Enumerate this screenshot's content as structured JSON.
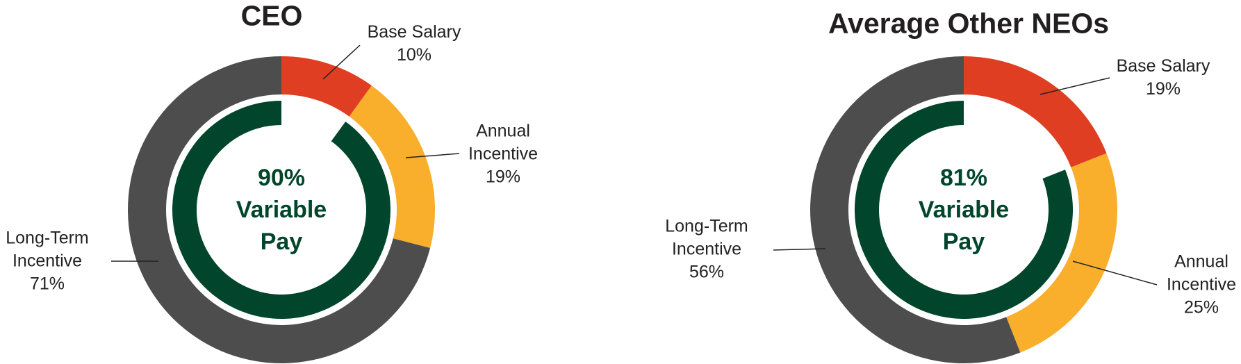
{
  "chart_data": [
    {
      "type": "pie",
      "title": "CEO",
      "categories": [
        "Base Salary",
        "Annual Incentive",
        "Long-Term Incentive"
      ],
      "values": [
        10,
        19,
        71
      ],
      "value_labels": [
        "10%",
        "19%",
        "71%"
      ],
      "colors": [
        "#e03e22",
        "#f9ae2c",
        "#4d4d4d"
      ],
      "inner_ring": {
        "value": 90,
        "value_label": "90%",
        "label": "Variable Pay",
        "color": "#00452c"
      }
    },
    {
      "type": "pie",
      "title": "Average Other NEOs",
      "categories": [
        "Base Salary",
        "Annual Incentive",
        "Long-Term Incentive"
      ],
      "values": [
        19,
        25,
        56
      ],
      "value_labels": [
        "19%",
        "25%",
        "56%"
      ],
      "colors": [
        "#e03e22",
        "#f9ae2c",
        "#4d4d4d"
      ],
      "inner_ring": {
        "value": 81,
        "value_label": "81%",
        "label": "Variable Pay",
        "color": "#00452c"
      }
    }
  ]
}
